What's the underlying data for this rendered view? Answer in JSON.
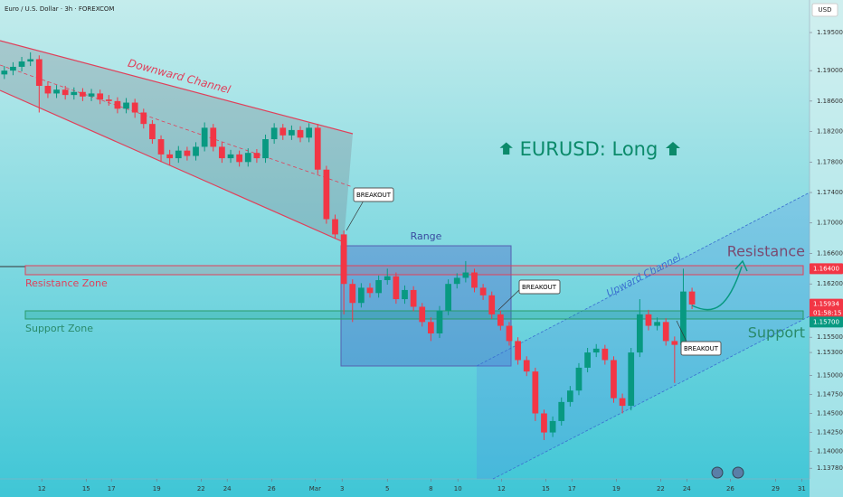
{
  "chart_data": {
    "type": "candlestick",
    "header": "Euro / U.S. Dollar · 3h · FOREXCOM",
    "currency": "USD",
    "title": "EURUSD: Long",
    "up_color": "#089981",
    "down_color": "#f23645",
    "xlim": [
      -0.5,
      92.5
    ],
    "ylim": [
      1.1364,
      1.19927
    ],
    "xticks": [
      {
        "value": 4.3,
        "label": "12"
      },
      {
        "value": 9.4,
        "label": "15"
      },
      {
        "value": 12.3,
        "label": "17"
      },
      {
        "value": 17.5,
        "label": "19"
      },
      {
        "value": 22.6,
        "label": "22"
      },
      {
        "value": 25.6,
        "label": "24"
      },
      {
        "value": 30.7,
        "label": "26"
      },
      {
        "value": 35.7,
        "label": "Mar"
      },
      {
        "value": 38.8,
        "label": "3"
      },
      {
        "value": 44,
        "label": "5"
      },
      {
        "value": 49,
        "label": "8"
      },
      {
        "value": 52.1,
        "label": "10"
      },
      {
        "value": 57.1,
        "label": "12"
      },
      {
        "value": 62.2,
        "label": "15"
      },
      {
        "value": 65.2,
        "label": "17"
      },
      {
        "value": 70.3,
        "label": "19"
      },
      {
        "value": 75.4,
        "label": "22"
      },
      {
        "value": 78.4,
        "label": "24"
      },
      {
        "value": 83.4,
        "label": "26"
      },
      {
        "value": 88.6,
        "label": "29"
      },
      {
        "value": 91.6,
        "label": "31"
      }
    ],
    "yticks": [
      {
        "value": 1.195,
        "label": "1.19500"
      },
      {
        "value": 1.19,
        "label": "1.19000"
      },
      {
        "value": 1.186,
        "label": "1.18600"
      },
      {
        "value": 1.182,
        "label": "1.18200"
      },
      {
        "value": 1.178,
        "label": "1.17800"
      },
      {
        "value": 1.174,
        "label": "1.17400"
      },
      {
        "value": 1.17,
        "label": "1.17000"
      },
      {
        "value": 1.166,
        "label": "1.16600"
      },
      {
        "value": 1.162,
        "label": "1.16200"
      },
      {
        "value": 1.155,
        "label": "1.15500"
      },
      {
        "value": 1.153,
        "label": "1.15300"
      },
      {
        "value": 1.15,
        "label": "1.15000"
      },
      {
        "value": 1.1475,
        "label": "1.14750"
      },
      {
        "value": 1.145,
        "label": "1.14500"
      },
      {
        "value": 1.1425,
        "label": "1.14250"
      },
      {
        "value": 1.14,
        "label": "1.14000"
      },
      {
        "value": 1.1378,
        "label": "1.13780"
      }
    ],
    "price_labels": [
      {
        "value": 1.164,
        "label": "1.16400",
        "color": "#f23645"
      },
      {
        "value": 1.15934,
        "label": "1.15934",
        "color": "#f23645"
      },
      {
        "value": 1.157,
        "label": "1.15700",
        "color": "#089981"
      }
    ],
    "countdown": "01:58:15",
    "annotations": {
      "downward_channel": "Downward Channel",
      "range": "Range",
      "breakout_1": "BREAKOUT",
      "breakout_2": "BREAKOUT",
      "breakout_3": "BREAKOUT",
      "resistance_zone": "Resistance Zone",
      "support_zone": "Support Zone",
      "upward_channel": "Upward Channel",
      "resistance": "Resistance",
      "support": "Support"
    },
    "open": [
      1.1895,
      1.19,
      1.1905,
      1.1912,
      1.1915,
      1.188,
      1.187,
      1.1875,
      1.1868,
      1.1872,
      1.1866,
      1.187,
      1.1862,
      1.186,
      1.185,
      1.1858,
      1.1845,
      1.183,
      1.181,
      1.179,
      1.1785,
      1.1795,
      1.1788,
      1.18,
      1.1825,
      1.18,
      1.1785,
      1.179,
      1.178,
      1.1792,
      1.1785,
      1.181,
      1.1825,
      1.1815,
      1.1822,
      1.1812,
      1.1825,
      1.177,
      1.1705,
      1.1685,
      1.162,
      1.1595,
      1.1615,
      1.1608,
      1.1625,
      1.163,
      1.16,
      1.1612,
      1.159,
      1.157,
      1.1555,
      1.1585,
      1.162,
      1.1628,
      1.1635,
      1.1615,
      1.1605,
      1.158,
      1.1565,
      1.1545,
      1.152,
      1.1505,
      1.145,
      1.1425,
      1.144,
      1.1465,
      1.148,
      1.151,
      1.153,
      1.1535,
      1.152,
      1.147,
      1.146,
      1.153,
      1.158,
      1.1565,
      1.157,
      1.1545,
      1.154,
      1.161
    ],
    "high": [
      1.1906,
      1.1911,
      1.1918,
      1.1924,
      1.192,
      1.1886,
      1.1881,
      1.188,
      1.1878,
      1.1877,
      1.1876,
      1.1875,
      1.1868,
      1.1865,
      1.1864,
      1.1863,
      1.185,
      1.1835,
      1.1815,
      1.1796,
      1.1801,
      1.18,
      1.1806,
      1.1832,
      1.183,
      1.1806,
      1.1796,
      1.1795,
      1.1798,
      1.1797,
      1.1816,
      1.1831,
      1.183,
      1.1828,
      1.1827,
      1.1831,
      1.183,
      1.1775,
      1.1711,
      1.169,
      1.1626,
      1.1621,
      1.1621,
      1.1631,
      1.164,
      1.1635,
      1.1618,
      1.1617,
      1.1595,
      1.1576,
      1.1591,
      1.1626,
      1.1634,
      1.165,
      1.164,
      1.162,
      1.161,
      1.1585,
      1.157,
      1.155,
      1.1525,
      1.151,
      1.1455,
      1.1446,
      1.1471,
      1.1486,
      1.1516,
      1.1536,
      1.1541,
      1.154,
      1.1525,
      1.1476,
      1.1536,
      1.16,
      1.1586,
      1.1576,
      1.1575,
      1.1551,
      1.164,
      1.1615
    ],
    "low": [
      1.1889,
      1.1894,
      1.1899,
      1.1906,
      1.1845,
      1.1864,
      1.1864,
      1.1862,
      1.1862,
      1.186,
      1.186,
      1.1856,
      1.1854,
      1.1844,
      1.1844,
      1.1838,
      1.1824,
      1.1804,
      1.178,
      1.1776,
      1.1779,
      1.1782,
      1.1782,
      1.1794,
      1.1794,
      1.1779,
      1.1779,
      1.1774,
      1.1774,
      1.1779,
      1.1779,
      1.1804,
      1.1809,
      1.1809,
      1.1806,
      1.1806,
      1.1764,
      1.1699,
      1.1679,
      1.158,
      1.157,
      1.1589,
      1.1602,
      1.1602,
      1.1619,
      1.1594,
      1.1594,
      1.1584,
      1.1564,
      1.1545,
      1.1549,
      1.1579,
      1.1614,
      1.1622,
      1.1609,
      1.1599,
      1.1574,
      1.1559,
      1.1539,
      1.1514,
      1.1499,
      1.144,
      1.1415,
      1.1419,
      1.1434,
      1.1459,
      1.1474,
      1.1504,
      1.1524,
      1.1514,
      1.1464,
      1.145,
      1.1454,
      1.1524,
      1.1559,
      1.1559,
      1.1539,
      1.149,
      1.1534,
      1.1587
    ],
    "close": [
      1.19,
      1.1905,
      1.1912,
      1.1915,
      1.188,
      1.187,
      1.1875,
      1.1868,
      1.1872,
      1.1866,
      1.187,
      1.1862,
      1.186,
      1.185,
      1.1858,
      1.1845,
      1.183,
      1.181,
      1.179,
      1.1785,
      1.1795,
      1.1788,
      1.18,
      1.1825,
      1.18,
      1.1785,
      1.179,
      1.178,
      1.1792,
      1.1785,
      1.181,
      1.1825,
      1.1815,
      1.1822,
      1.1812,
      1.1825,
      1.177,
      1.1705,
      1.1685,
      1.162,
      1.1595,
      1.1615,
      1.1608,
      1.1625,
      1.163,
      1.16,
      1.1612,
      1.159,
      1.157,
      1.1555,
      1.1585,
      1.162,
      1.1628,
      1.1635,
      1.1615,
      1.1605,
      1.158,
      1.1565,
      1.1545,
      1.152,
      1.1505,
      1.145,
      1.1425,
      1.144,
      1.1465,
      1.148,
      1.151,
      1.153,
      1.1535,
      1.152,
      1.147,
      1.146,
      1.153,
      1.158,
      1.1565,
      1.157,
      1.1545,
      1.154,
      1.161,
      1.1593
    ]
  }
}
